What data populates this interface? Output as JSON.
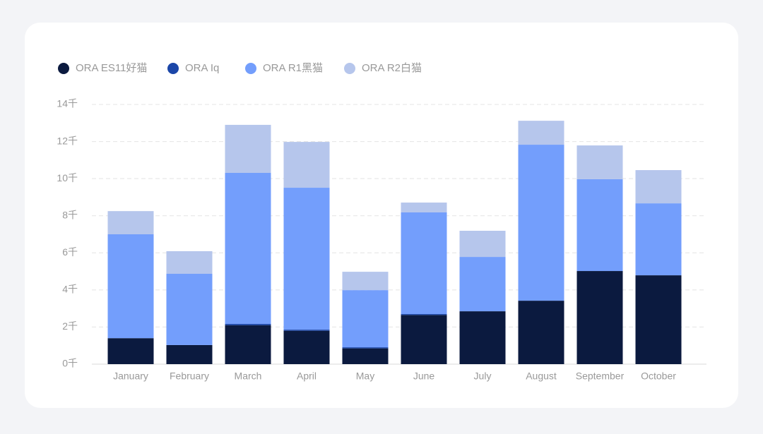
{
  "chart_data": {
    "type": "stacked-bar",
    "categories": [
      "January",
      "February",
      "March",
      "April",
      "May",
      "June",
      "July",
      "August",
      "September",
      "October"
    ],
    "series": [
      {
        "name": "ORA ES11好猫",
        "color": "#0b1a3f",
        "values": [
          1.4,
          1.03,
          2.1,
          1.8,
          0.85,
          2.65,
          2.85,
          3.42,
          5.02,
          4.79
        ]
      },
      {
        "name": "ORA Iq",
        "color": "#1b46a8",
        "values": [
          0,
          0,
          0.07,
          0.06,
          0.06,
          0.05,
          0,
          0,
          0,
          0
        ]
      },
      {
        "name": "ORA R1黑猫",
        "color": "#739efc",
        "values": [
          5.6,
          3.84,
          8.14,
          7.65,
          3.08,
          5.48,
          2.93,
          8.41,
          4.95,
          3.88
        ]
      },
      {
        "name": "ORA R2白猫",
        "color": "#b6c6ec",
        "values": [
          1.25,
          1.22,
          2.59,
          2.47,
          0.99,
          0.53,
          1.41,
          1.29,
          1.82,
          1.79
        ]
      }
    ],
    "ylim": [
      0,
      14
    ],
    "yticks": [
      {
        "value": 0,
        "label": "0千"
      },
      {
        "value": 2,
        "label": "2千"
      },
      {
        "value": 4,
        "label": "4千"
      },
      {
        "value": 6,
        "label": "6千"
      },
      {
        "value": 8,
        "label": "8千"
      },
      {
        "value": 10,
        "label": "10千"
      },
      {
        "value": 12,
        "label": "12千"
      },
      {
        "value": 14,
        "label": "14千"
      }
    ],
    "grid": true
  }
}
